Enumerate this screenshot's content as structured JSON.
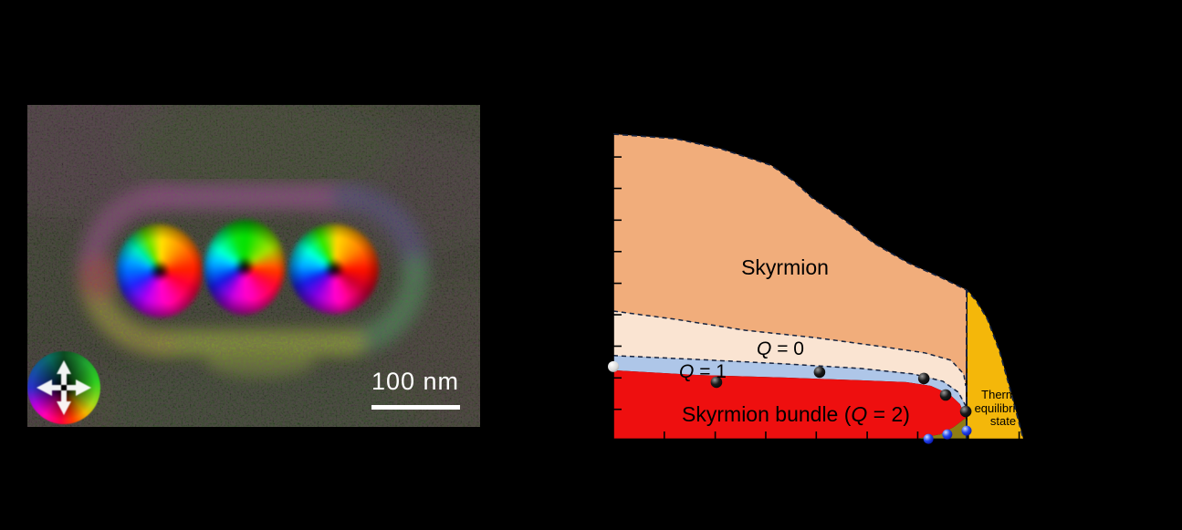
{
  "panel_left": {
    "description": "magnetization-texture-image",
    "scale_bar": {
      "label": "100 nm"
    },
    "color_wheel": {
      "arrow_directions": [
        "up",
        "down",
        "left",
        "right"
      ]
    }
  },
  "phase_diagram": {
    "labels": {
      "skyrmion": {
        "pre": "Skyrmion",
        "q": "",
        "post": ""
      },
      "q0": {
        "pre": "",
        "q": "Q",
        "post": " = 0"
      },
      "q1": {
        "pre": "",
        "q": "Q",
        "post": " = 1"
      },
      "bundle": {
        "pre": "Skyrmion bundle (",
        "q": "Q",
        "post": " = 2)"
      },
      "thermal": "Thermal equilibrium state"
    },
    "colors": {
      "skyrmion_region": "#F1AD7B",
      "q0_region": "#FAE4D2",
      "q1_region": "#AEC6E8",
      "bundle_region": "#EE0F0F",
      "thermal_region": "#F4B70A",
      "khaki_region": "#8F7D14",
      "dash_stroke": "#16233F",
      "axis_stroke": "#000000",
      "point_black": "#111111",
      "point_blue": "#2244EE",
      "point_white": "#E8E8E8"
    }
  },
  "chart_data": {
    "type": "area",
    "title": "",
    "xlabel": "",
    "ylabel": "",
    "legend": "none",
    "grid": false,
    "regions": [
      {
        "name": "skyrmion",
        "label": "Skyrmion"
      },
      {
        "name": "q0",
        "label": "Q = 0"
      },
      {
        "name": "q1",
        "label": "Q = 1"
      },
      {
        "name": "bundle",
        "label": "Skyrmion bundle (Q = 2)"
      },
      {
        "name": "thermal",
        "label": "Thermal equilibrium state"
      }
    ],
    "x_ticks_u": [
      0.124,
      0.248,
      0.371,
      0.494,
      0.618,
      0.741,
      0.864,
      0.988
    ],
    "y_ticks_v": [
      0.925,
      0.822,
      0.718,
      0.615,
      0.511,
      0.408,
      0.305,
      0.201,
      0.098
    ],
    "dashed_vertical_u": 0.86,
    "boundaries": {
      "outer_top": [
        [
          0,
          1
        ],
        [
          0.151,
          0.985
        ],
        [
          0.262,
          0.952
        ],
        [
          0.384,
          0.898
        ],
        [
          0.44,
          0.845
        ],
        [
          0.484,
          0.791
        ],
        [
          0.562,
          0.719
        ],
        [
          0.636,
          0.641
        ],
        [
          0.718,
          0.578
        ],
        [
          0.796,
          0.531
        ],
        [
          0.86,
          0.489
        ]
      ],
      "thermal_outer": [
        [
          0.86,
          0.489
        ],
        [
          0.884,
          0.453
        ],
        [
          0.911,
          0.393
        ],
        [
          0.94,
          0.289
        ],
        [
          0.962,
          0.184
        ],
        [
          0.98,
          0.094
        ],
        [
          0.998,
          0.001
        ]
      ],
      "q0_top": [
        [
          0,
          0.42
        ],
        [
          0.151,
          0.393
        ],
        [
          0.322,
          0.357
        ],
        [
          0.491,
          0.333
        ],
        [
          0.64,
          0.306
        ],
        [
          0.758,
          0.283
        ],
        [
          0.822,
          0.259
        ],
        [
          0.853,
          0.214
        ],
        [
          0.858,
          0.175
        ]
      ],
      "q1_top": [
        [
          0,
          0.274
        ],
        [
          0.196,
          0.262
        ],
        [
          0.418,
          0.247
        ],
        [
          0.602,
          0.232
        ],
        [
          0.729,
          0.214
        ],
        [
          0.802,
          0.19
        ],
        [
          0.84,
          0.154
        ],
        [
          0.858,
          0.109
        ]
      ],
      "red_top": [
        [
          0,
          0.226
        ],
        [
          0.196,
          0.211
        ],
        [
          0.418,
          0.202
        ],
        [
          0.602,
          0.193
        ],
        [
          0.713,
          0.187
        ],
        [
          0.773,
          0.175
        ],
        [
          0.818,
          0.148
        ],
        [
          0.844,
          0.115
        ],
        [
          0.858,
          0.07
        ]
      ],
      "red_bottom": [
        [
          0.74,
          0.002
        ],
        [
          0.796,
          0.016
        ],
        [
          0.829,
          0.04
        ],
        [
          0.858,
          0.07
        ]
      ]
    },
    "scatter": {
      "black_points": [
        [
          0.251,
          0.187
        ],
        [
          0.502,
          0.22
        ],
        [
          0.756,
          0.199
        ],
        [
          0.809,
          0.145
        ],
        [
          0.858,
          0.091
        ]
      ],
      "white_points": [
        [
          0.0,
          0.238
        ]
      ],
      "blue_points": [
        [
          0.767,
          0.001
        ],
        [
          0.813,
          0.016
        ],
        [
          0.86,
          0.028
        ]
      ]
    }
  }
}
